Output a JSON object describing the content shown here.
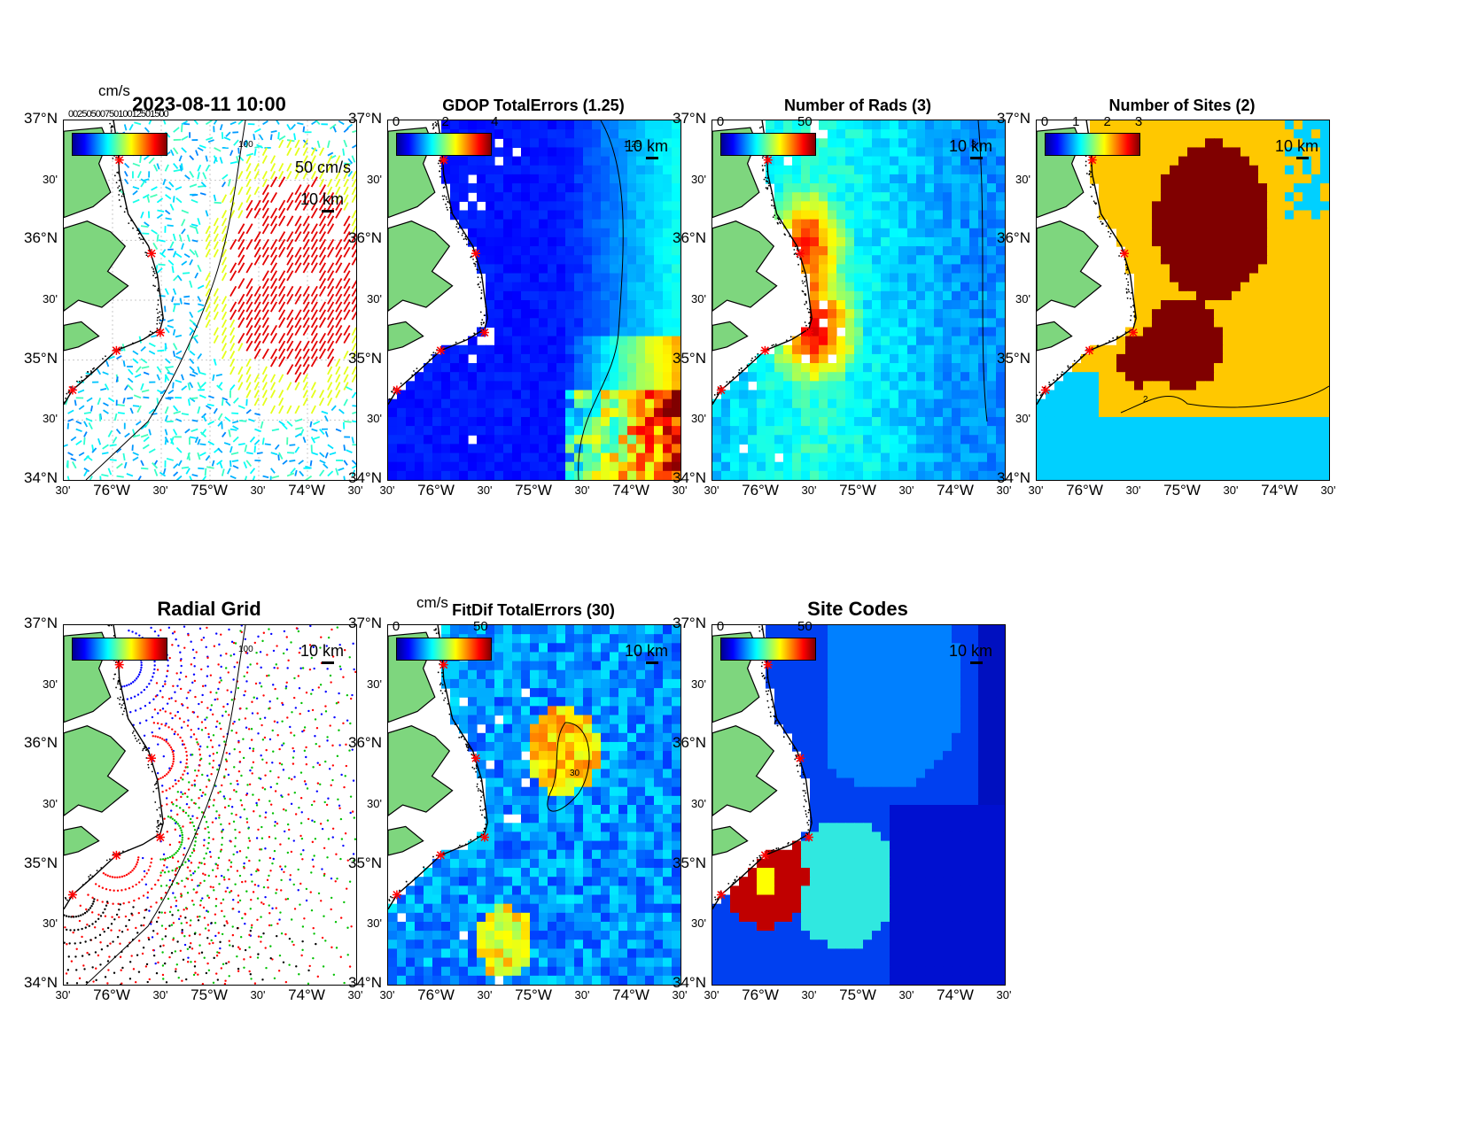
{
  "figure": {
    "panels": [
      {
        "id": "p1",
        "title": "2023-08-11 10:00",
        "kind": "vectors",
        "cb_ticks": [],
        "cb_unit": "cm/s",
        "scale_label": "10 km",
        "vector_label": "50 cm/s",
        "contour_label": "100",
        "crowded_label": "0025050075010012501500"
      },
      {
        "id": "p2",
        "title": "GDOP TotalErrors (1.25)",
        "kind": "gdop",
        "cb_ticks": [
          "0",
          "2",
          "4"
        ],
        "scale_label": "10 km",
        "contour_label": "1.25"
      },
      {
        "id": "p3",
        "title": "Number of Rads (3)",
        "kind": "rads",
        "cb_ticks": [
          "0",
          "50"
        ],
        "scale_label": "10 km",
        "contour_label": "3"
      },
      {
        "id": "p4",
        "title": "Number of Sites (2)",
        "kind": "sites",
        "cb_ticks": [
          "0",
          "1",
          "2",
          "3"
        ],
        "scale_label": "10 km",
        "contour_label": "2"
      },
      {
        "id": "p5",
        "title": "Radial Grid",
        "kind": "radial",
        "cb_ticks": [],
        "scale_label": "10 km",
        "contour_label": "100"
      },
      {
        "id": "p6",
        "title": "FitDif TotalErrors (30)",
        "kind": "fitdif",
        "cb_ticks": [
          "0",
          "50"
        ],
        "cb_unit": "cm/s",
        "scale_label": "10 km",
        "contour_label": "30"
      },
      {
        "id": "p7",
        "title": "Site Codes",
        "kind": "sitecodes",
        "cb_ticks": [
          "0",
          "50"
        ],
        "scale_label": "10 km"
      }
    ],
    "y_ticks": [
      {
        "label": "37°N",
        "major": true
      },
      {
        "label": "30'",
        "major": false
      },
      {
        "label": "36°N",
        "major": true
      },
      {
        "label": "30'",
        "major": false
      },
      {
        "label": "35°N",
        "major": true
      },
      {
        "label": "30'",
        "major": false
      },
      {
        "label": "34°N",
        "major": true
      }
    ],
    "x_ticks": [
      {
        "label": "30'",
        "major": false
      },
      {
        "label": "76°W",
        "major": true
      },
      {
        "label": "30'",
        "major": false
      },
      {
        "label": "75°W",
        "major": true
      },
      {
        "label": "30'",
        "major": false
      },
      {
        "label": "74°W",
        "major": true
      },
      {
        "label": "30'",
        "major": false
      }
    ],
    "colors": {
      "land": "#7ed67e",
      "coast": "#000000",
      "site_marker": "#ff0000",
      "sites_yellow": "#ffc800",
      "sites_red": "#800000",
      "sites_cyan": "#00d0ff"
    }
  },
  "chart_data": [
    {
      "type": "heatmap",
      "title": "2023-08-11 10:00",
      "xlabel": "",
      "ylabel": "",
      "colorbar_unit": "cm/s",
      "xlim": [
        -76.75,
        -73.75
      ],
      "ylim": [
        34,
        37
      ],
      "annotations": [
        "50 cm/s",
        "10 km",
        "100"
      ]
    },
    {
      "type": "heatmap",
      "title": "GDOP TotalErrors (1.25)",
      "colorbar_ticks": [
        0,
        2,
        4
      ],
      "contour_level": 1.25,
      "xlim": [
        -76.75,
        -73.75
      ],
      "ylim": [
        34,
        37
      ]
    },
    {
      "type": "heatmap",
      "title": "Number of Rads (3)",
      "colorbar_ticks": [
        0,
        50
      ],
      "contour_level": 3,
      "xlim": [
        -76.75,
        -73.75
      ],
      "ylim": [
        34,
        37
      ]
    },
    {
      "type": "heatmap",
      "title": "Number of Sites (2)",
      "colorbar_ticks": [
        0,
        1,
        2,
        3
      ],
      "contour_level": 2,
      "xlim": [
        -76.75,
        -73.75
      ],
      "ylim": [
        34,
        37
      ]
    },
    {
      "type": "scatter",
      "title": "Radial Grid",
      "series": [
        {
          "color": "blue"
        },
        {
          "color": "red"
        },
        {
          "color": "green"
        },
        {
          "color": "black"
        }
      ],
      "contour_level": 100,
      "xlim": [
        -76.75,
        -73.75
      ],
      "ylim": [
        34,
        37
      ]
    },
    {
      "type": "heatmap",
      "title": "FitDif TotalErrors (30)",
      "colorbar_unit": "cm/s",
      "colorbar_ticks": [
        0,
        50
      ],
      "contour_level": 30,
      "xlim": [
        -76.75,
        -73.75
      ],
      "ylim": [
        34,
        37
      ]
    },
    {
      "type": "heatmap",
      "title": "Site Codes",
      "colorbar_ticks": [
        0,
        50
      ],
      "xlim": [
        -76.75,
        -73.75
      ],
      "ylim": [
        34,
        37
      ]
    }
  ]
}
